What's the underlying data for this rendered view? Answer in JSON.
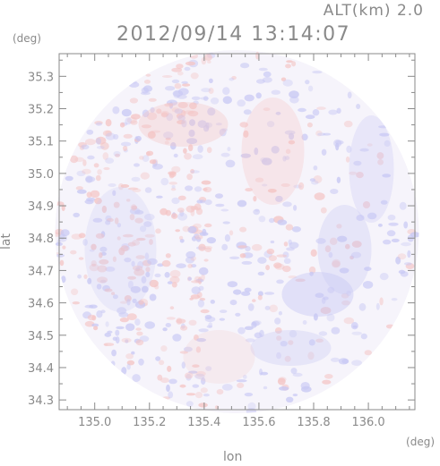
{
  "header": {
    "altitude": "ALT(km) 2.0",
    "datetime": "2012/09/14 13:14:07"
  },
  "axes": {
    "y_unit": "(deg)",
    "x_unit": "(deg)",
    "y_label": "lat",
    "x_label": "lon",
    "x_ticks": [
      "135.0",
      "135.2",
      "135.4",
      "135.6",
      "135.8",
      "136.0"
    ],
    "y_ticks": [
      "34.3",
      "34.4",
      "34.5",
      "34.6",
      "34.7",
      "34.8",
      "34.9",
      "35.0",
      "35.1",
      "35.2",
      "35.3"
    ]
  },
  "map": {
    "lon_range": [
      134.87,
      136.17
    ],
    "lat_range": [
      34.27,
      35.37
    ],
    "center": {
      "lon": 135.52,
      "lat": 34.82
    },
    "colors": {
      "positive": "#f4c4c4",
      "negative": "#c8c8f4",
      "background": "#f6f4fb",
      "frame": "#8a8a8a"
    }
  }
}
